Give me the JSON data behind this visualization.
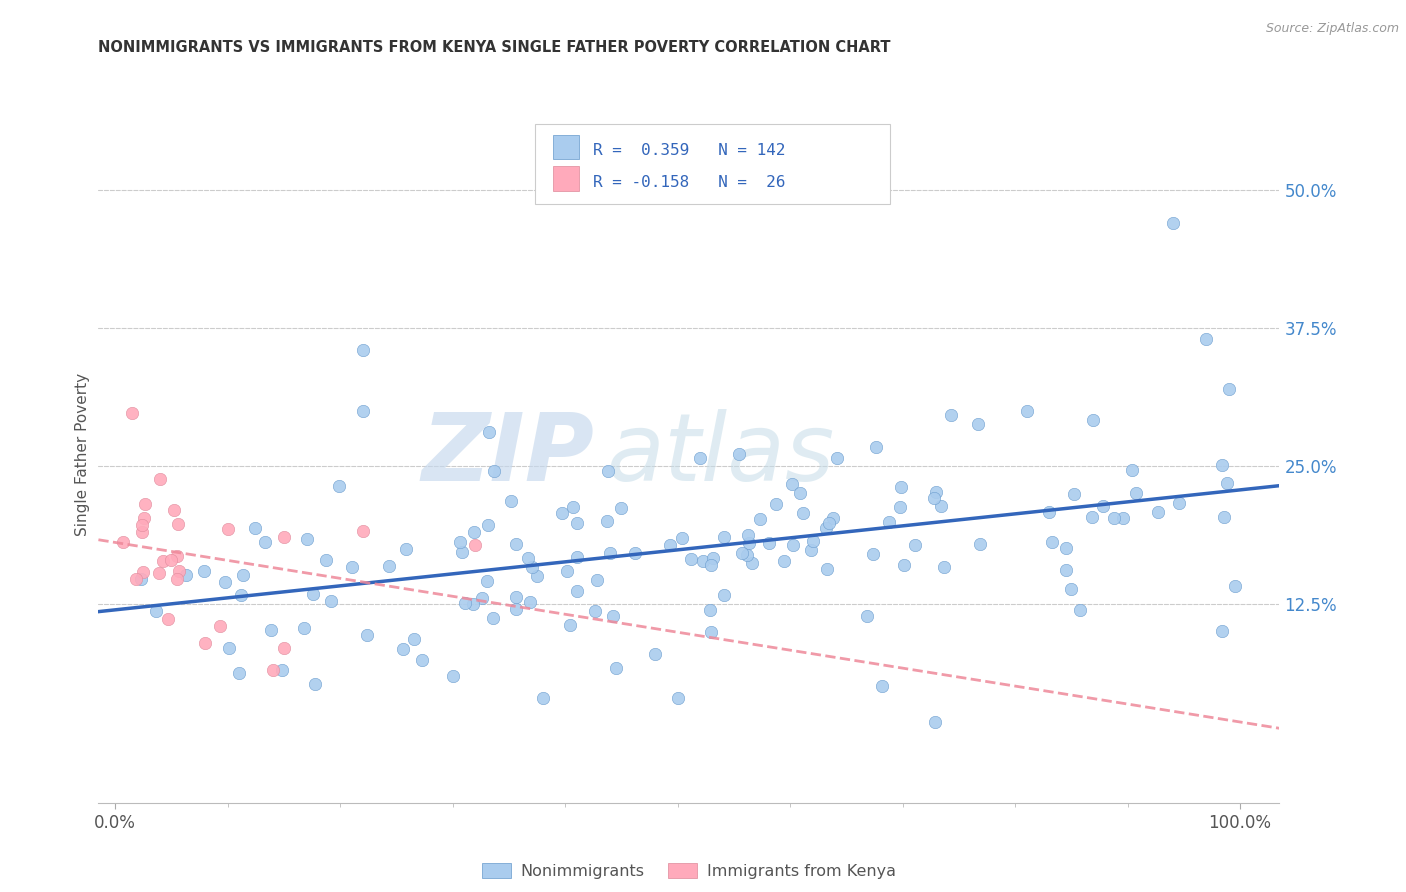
{
  "title": "NONIMMIGRANTS VS IMMIGRANTS FROM KENYA SINGLE FATHER POVERTY CORRELATION CHART",
  "source": "Source: ZipAtlas.com",
  "ylabel_label": "Single Father Poverty",
  "watermark_zip": "ZIP",
  "watermark_atlas": "atlas",
  "nonimm_color": "#aaccee",
  "nonimm_edge_color": "#6699cc",
  "imm_color": "#ffaabb",
  "imm_edge_color": "#dd8899",
  "nonimm_line_color": "#3366bb",
  "imm_line_color": "#ee8899",
  "background_color": "#ffffff",
  "grid_color": "#cccccc",
  "right_tick_color": "#4488cc",
  "title_color": "#333333",
  "source_color": "#999999",
  "legend_text_color": "#3366bb",
  "bottom_legend_color": "#555555",
  "nonimm_R": 0.359,
  "nonimm_N": 142,
  "imm_R": -0.158,
  "imm_N": 26,
  "y_ticks": [
    0.125,
    0.25,
    0.375,
    0.5
  ],
  "y_tick_labels": [
    "12.5%",
    "25.0%",
    "37.5%",
    "50.0%"
  ],
  "x_tick_labels": [
    "0.0%",
    "100.0%"
  ],
  "x_lim": [
    -0.015,
    1.035
  ],
  "y_lim": [
    -0.055,
    0.575
  ]
}
